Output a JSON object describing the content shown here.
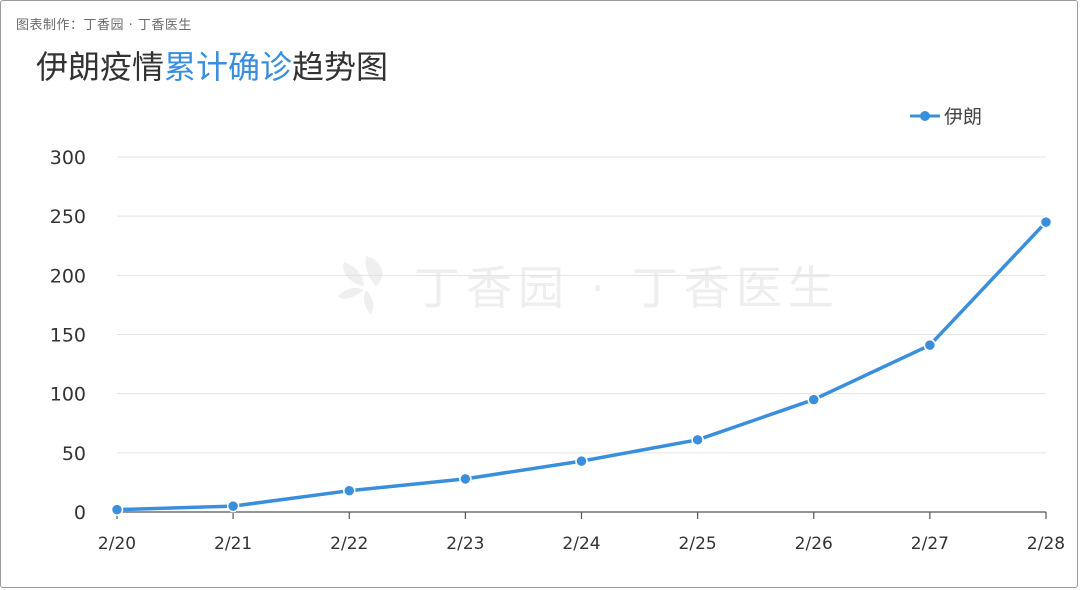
{
  "credit": "图表制作：丁香园 · 丁香医生",
  "title": {
    "part1": "伊朗疫情",
    "highlight": "累计确诊",
    "part2": "趋势图"
  },
  "watermark": "丁香园 · 丁香医生",
  "colors": {
    "line": "#3a8fdc",
    "title_highlight": "#3a8fdc",
    "grid": "#e3e3e3"
  },
  "chart_data": {
    "type": "line",
    "categories": [
      "2/20",
      "2/21",
      "2/22",
      "2/23",
      "2/24",
      "2/25",
      "2/26",
      "2/27",
      "2/28"
    ],
    "series": [
      {
        "name": "伊朗",
        "values": [
          2,
          5,
          18,
          28,
          43,
          61,
          95,
          141,
          245
        ]
      }
    ],
    "ylim": [
      0,
      300
    ],
    "yticks": [
      0,
      50,
      100,
      150,
      200,
      250,
      300
    ],
    "grid": true,
    "legend": "top-right"
  }
}
